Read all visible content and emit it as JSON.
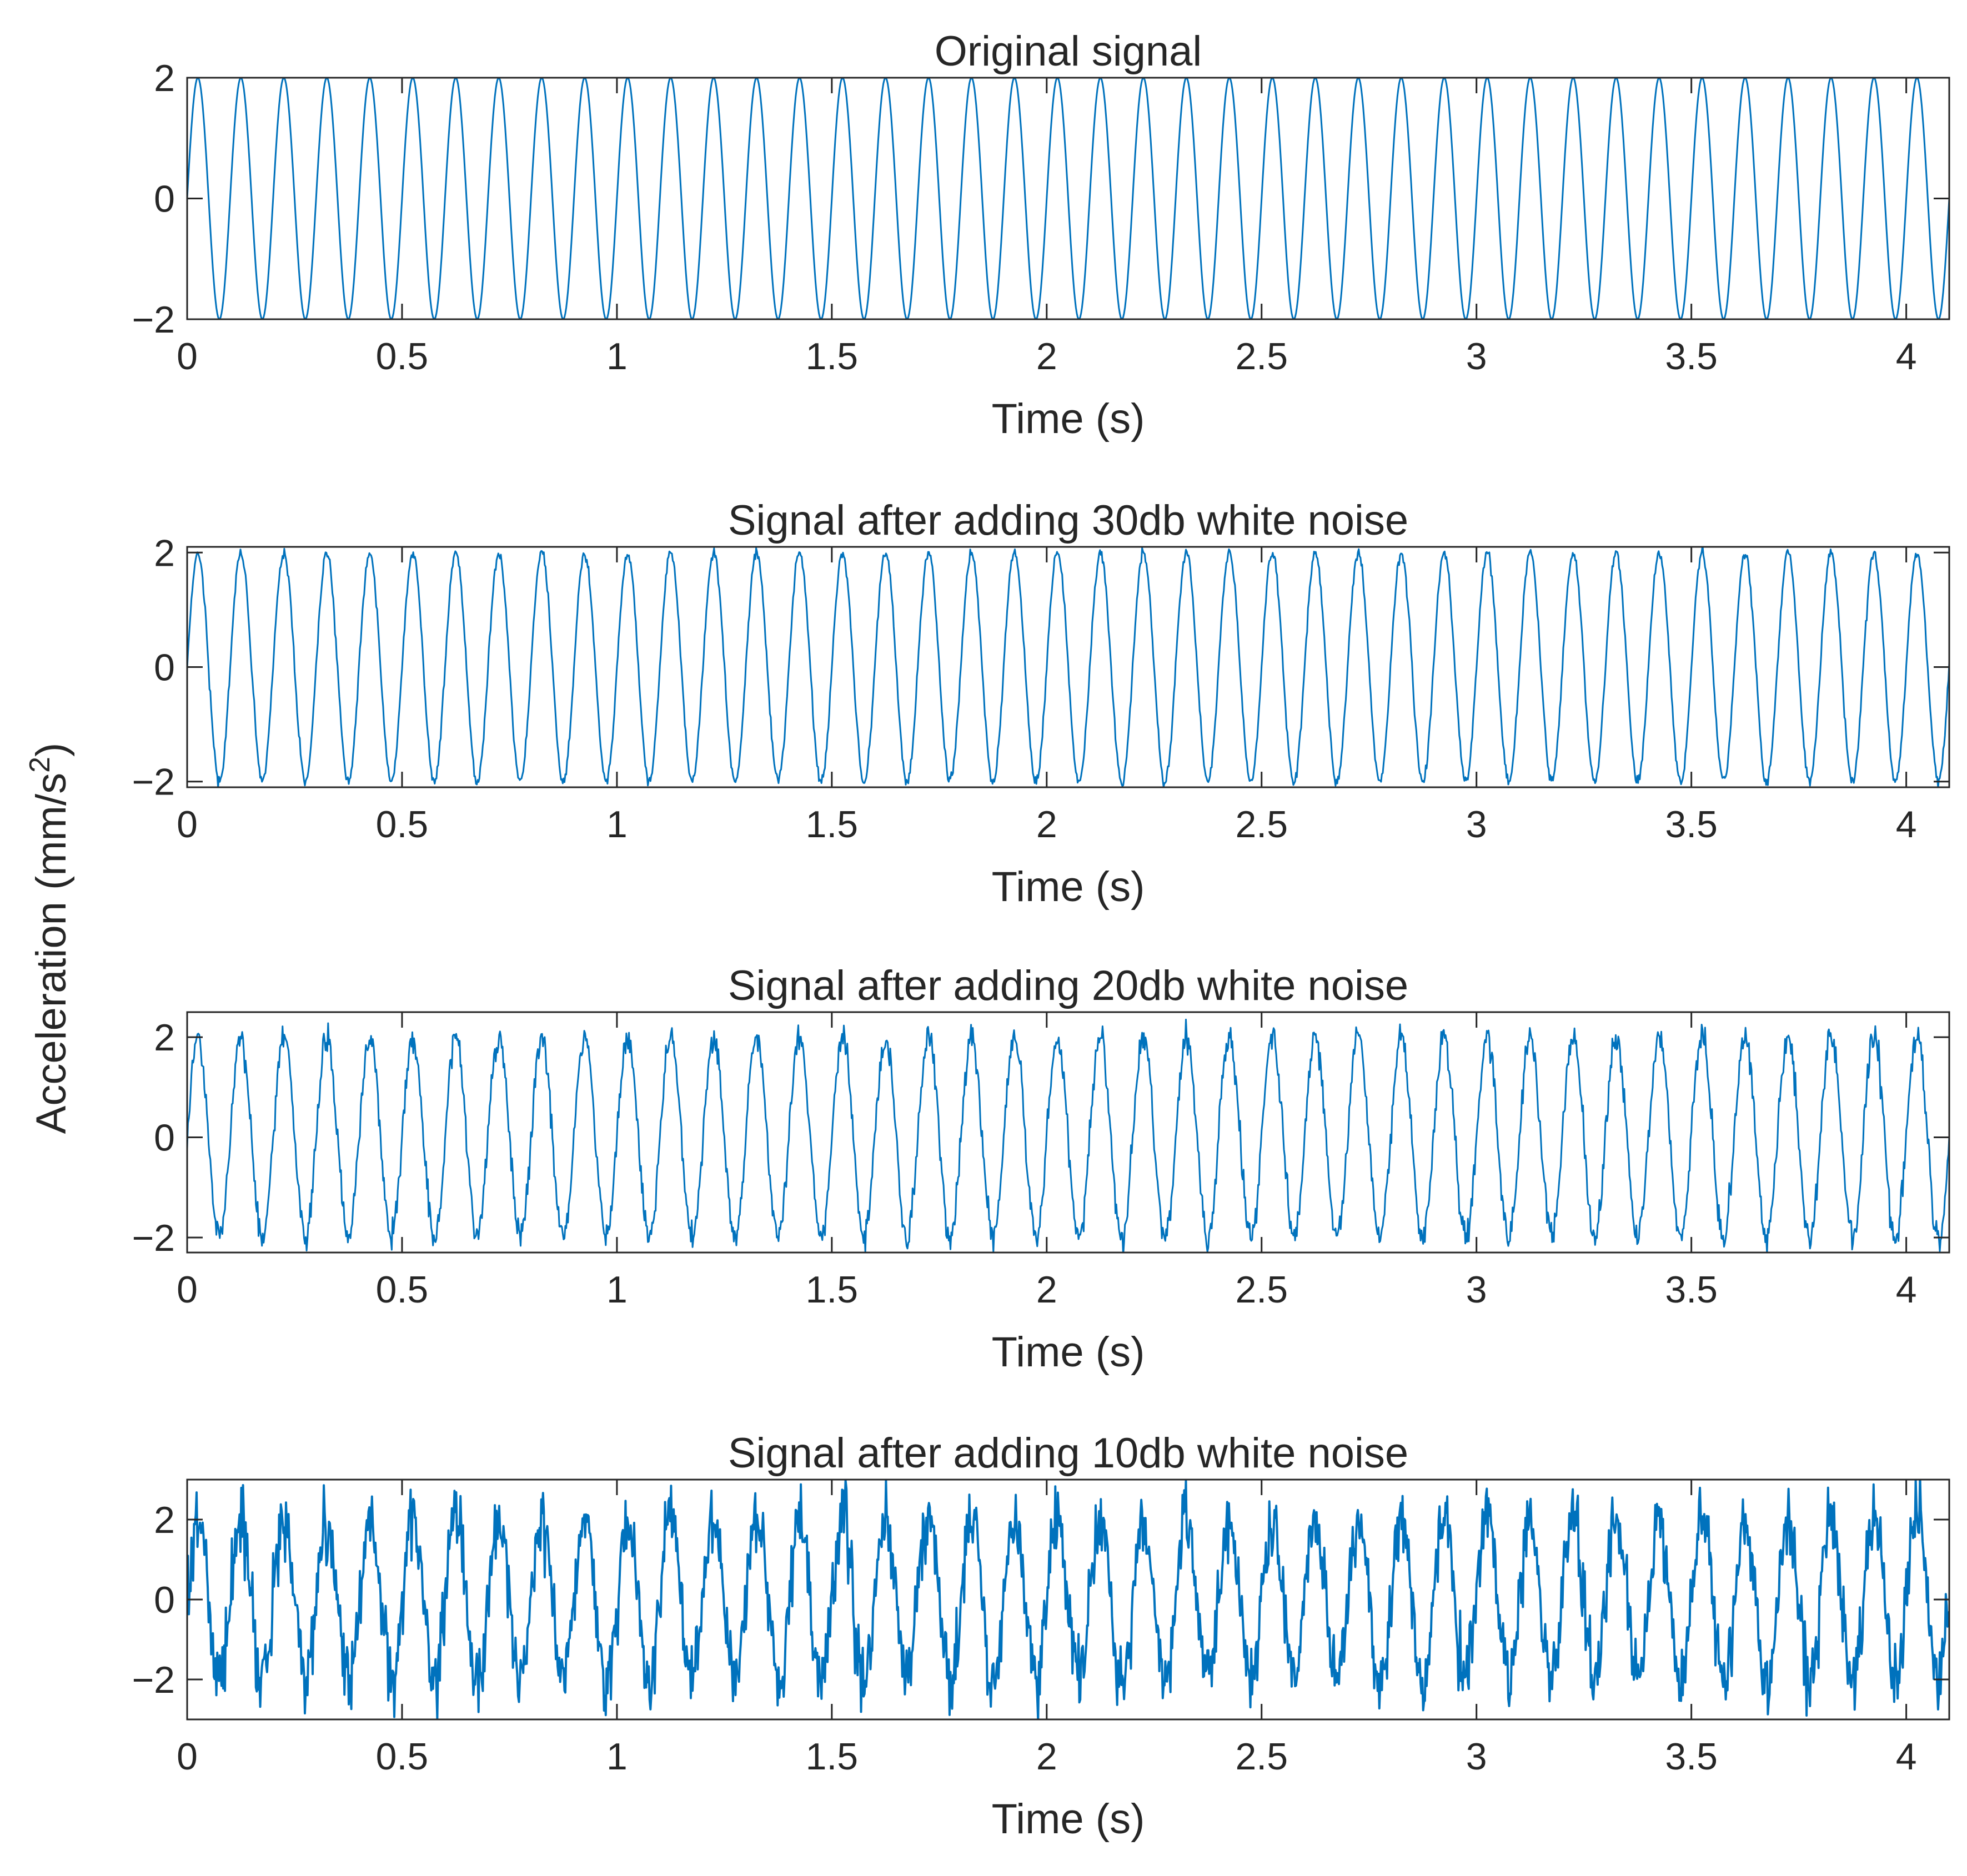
{
  "figure": {
    "ylabel": "Acceleration (mm/s",
    "ylabel_superscript": "2",
    "ylabel_suffix": ")"
  },
  "chart_data": [
    {
      "type": "line",
      "title": "Original signal",
      "xlabel": "Time (s)",
      "ylabel": "",
      "xlim": [
        0,
        4.1
      ],
      "ylim": [
        -2,
        2
      ],
      "xticks": [
        0,
        0.5,
        1,
        1.5,
        2,
        2.5,
        3,
        3.5,
        4
      ],
      "xtick_labels": [
        "0",
        "0.5",
        "1",
        "1.5",
        "2",
        "2.5",
        "3",
        "3.5",
        "4"
      ],
      "yticks": [
        -2,
        0,
        2
      ],
      "ytick_labels": [
        "−2",
        "0",
        "2"
      ],
      "grid": false,
      "color": "#0072BD",
      "signal": {
        "amplitude": 2,
        "frequency_hz": 10,
        "phase_rad": 0,
        "duration_s": 4.1,
        "snr_db": null
      }
    },
    {
      "type": "line",
      "title": "Signal after adding 30db white noise",
      "xlabel": "Time (s)",
      "ylabel": "",
      "xlim": [
        0,
        4.1
      ],
      "ylim": [
        -2.1,
        2.1
      ],
      "xticks": [
        0,
        0.5,
        1,
        1.5,
        2,
        2.5,
        3,
        3.5,
        4
      ],
      "xtick_labels": [
        "0",
        "0.5",
        "1",
        "1.5",
        "2",
        "2.5",
        "3",
        "3.5",
        "4"
      ],
      "yticks": [
        -2,
        0,
        2
      ],
      "ytick_labels": [
        "−2",
        "0",
        "2"
      ],
      "grid": false,
      "color": "#0072BD",
      "signal": {
        "amplitude": 2,
        "frequency_hz": 10,
        "phase_rad": 0,
        "duration_s": 4.1,
        "snr_db": 30
      }
    },
    {
      "type": "line",
      "title": "Signal after adding 20db white noise",
      "xlabel": "Time (s)",
      "ylabel": "",
      "xlim": [
        0,
        4.1
      ],
      "ylim": [
        -2.3,
        2.5
      ],
      "xticks": [
        0,
        0.5,
        1,
        1.5,
        2,
        2.5,
        3,
        3.5,
        4
      ],
      "xtick_labels": [
        "0",
        "0.5",
        "1",
        "1.5",
        "2",
        "2.5",
        "3",
        "3.5",
        "4"
      ],
      "yticks": [
        -2,
        0,
        2
      ],
      "ytick_labels": [
        "−2",
        "0",
        "2"
      ],
      "grid": false,
      "color": "#0072BD",
      "signal": {
        "amplitude": 2,
        "frequency_hz": 10,
        "phase_rad": 0,
        "duration_s": 4.1,
        "snr_db": 20
      }
    },
    {
      "type": "line",
      "title": "Signal after adding 10db white noise",
      "xlabel": "Time (s)",
      "ylabel": "",
      "xlim": [
        0,
        4.1
      ],
      "ylim": [
        -3,
        3
      ],
      "xticks": [
        0,
        0.5,
        1,
        1.5,
        2,
        2.5,
        3,
        3.5,
        4
      ],
      "xtick_labels": [
        "0",
        "0.5",
        "1",
        "1.5",
        "2",
        "2.5",
        "3",
        "3.5",
        "4"
      ],
      "yticks": [
        -2,
        0,
        2
      ],
      "ytick_labels": [
        "−2",
        "0",
        "2"
      ],
      "grid": false,
      "color": "#0072BD",
      "signal": {
        "amplitude": 2,
        "frequency_hz": 10,
        "phase_rad": 0,
        "duration_s": 4.1,
        "snr_db": 10
      }
    }
  ]
}
